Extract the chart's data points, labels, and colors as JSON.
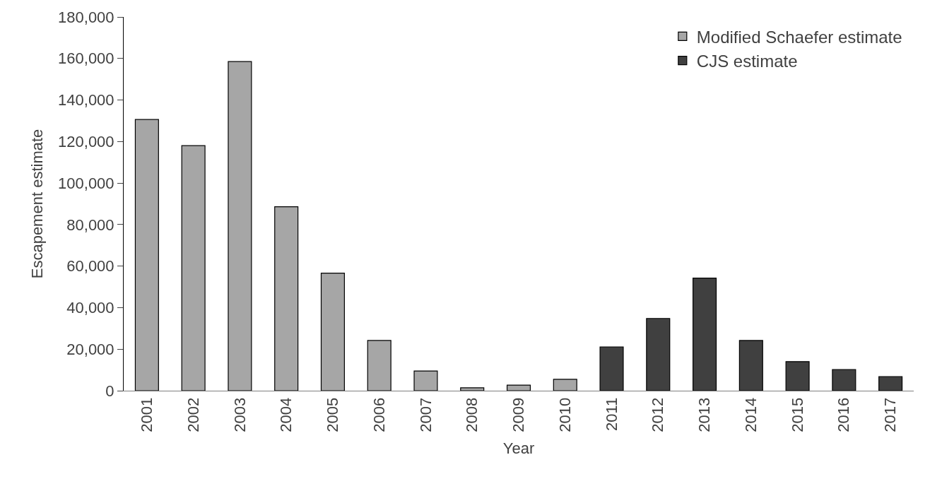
{
  "chart_data": {
    "type": "bar",
    "xlabel": "Year",
    "ylabel": "Escapement estimate",
    "categories": [
      "2001",
      "2002",
      "2003",
      "2004",
      "2005",
      "2006",
      "2007",
      "2008",
      "2009",
      "2010",
      "2011",
      "2012",
      "2013",
      "2014",
      "2015",
      "2016",
      "2017"
    ],
    "series": [
      {
        "name": "Modified Schaefer estimate",
        "color": "#a6a6a6",
        "values": [
          130600,
          118000,
          158500,
          88600,
          56600,
          24200,
          9500,
          1400,
          2700,
          5500,
          null,
          null,
          null,
          null,
          null,
          null,
          null
        ]
      },
      {
        "name": "CJS estimate",
        "color": "#404040",
        "values": [
          null,
          null,
          null,
          null,
          null,
          null,
          null,
          null,
          null,
          null,
          21100,
          34800,
          54200,
          24200,
          14000,
          10200,
          6800
        ]
      }
    ],
    "ylim": [
      0,
      180000
    ],
    "yticks": [
      {
        "value": 0,
        "label": "0"
      },
      {
        "value": 20000,
        "label": "20,000"
      },
      {
        "value": 40000,
        "label": "40,000"
      },
      {
        "value": 60000,
        "label": "60,000"
      },
      {
        "value": 80000,
        "label": "80,000"
      },
      {
        "value": 100000,
        "label": "100,000"
      },
      {
        "value": 120000,
        "label": "120,000"
      },
      {
        "value": 140000,
        "label": "140,000"
      },
      {
        "value": 160000,
        "label": "160,000"
      },
      {
        "value": 180000,
        "label": "180,000"
      }
    ],
    "grid": false,
    "legend": "top right"
  }
}
